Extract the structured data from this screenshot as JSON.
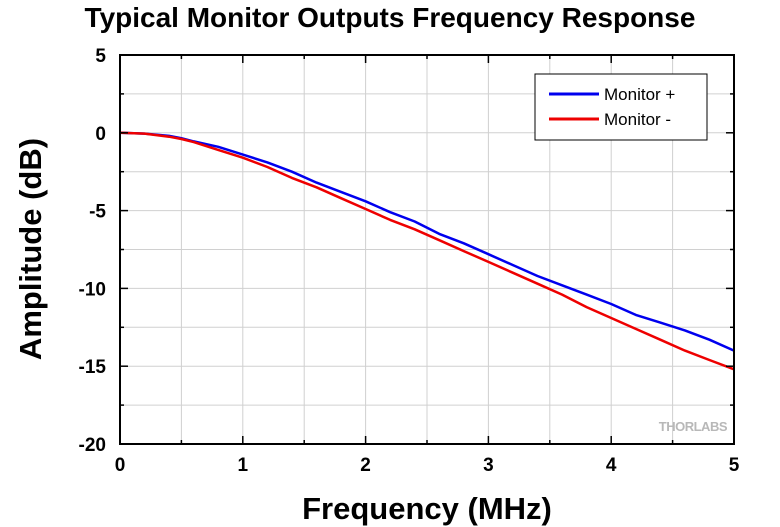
{
  "chart_data": {
    "type": "line",
    "title": "Typical Monitor Outputs Frequency Response",
    "xlabel": "Frequency (MHz)",
    "ylabel": "Amplitude (dB)",
    "xlim": [
      0,
      5
    ],
    "ylim": [
      -20,
      5
    ],
    "xticks": [
      0,
      1,
      2,
      3,
      4,
      5
    ],
    "yticks": [
      5,
      0,
      -5,
      -10,
      -15,
      -20
    ],
    "grid": true,
    "legend_position": "top-right",
    "watermark": "THORLABS",
    "series": [
      {
        "name": "Monitor +",
        "color": "#0000ee",
        "x": [
          0,
          0.2,
          0.4,
          0.5,
          0.6,
          0.8,
          1.0,
          1.2,
          1.4,
          1.6,
          1.8,
          2.0,
          2.2,
          2.4,
          2.6,
          2.8,
          3.0,
          3.2,
          3.4,
          3.6,
          3.8,
          4.0,
          4.2,
          4.4,
          4.6,
          4.8,
          5.0
        ],
        "y": [
          0,
          -0.05,
          -0.2,
          -0.35,
          -0.55,
          -0.9,
          -1.4,
          -1.9,
          -2.5,
          -3.2,
          -3.8,
          -4.4,
          -5.1,
          -5.7,
          -6.5,
          -7.1,
          -7.8,
          -8.5,
          -9.2,
          -9.8,
          -10.4,
          -11.0,
          -11.7,
          -12.2,
          -12.7,
          -13.3,
          -14.0
        ]
      },
      {
        "name": "Monitor -",
        "color": "#ee0000",
        "x": [
          0,
          0.2,
          0.4,
          0.5,
          0.6,
          0.8,
          1.0,
          1.2,
          1.4,
          1.6,
          1.8,
          2.0,
          2.2,
          2.4,
          2.6,
          2.8,
          3.0,
          3.2,
          3.4,
          3.6,
          3.8,
          4.0,
          4.2,
          4.4,
          4.6,
          4.8,
          5.0
        ],
        "y": [
          0,
          -0.05,
          -0.25,
          -0.4,
          -0.6,
          -1.1,
          -1.6,
          -2.2,
          -2.9,
          -3.5,
          -4.2,
          -4.9,
          -5.6,
          -6.2,
          -6.9,
          -7.6,
          -8.3,
          -9.0,
          -9.7,
          -10.4,
          -11.2,
          -11.9,
          -12.6,
          -13.3,
          -14.0,
          -14.6,
          -15.2
        ]
      }
    ]
  }
}
